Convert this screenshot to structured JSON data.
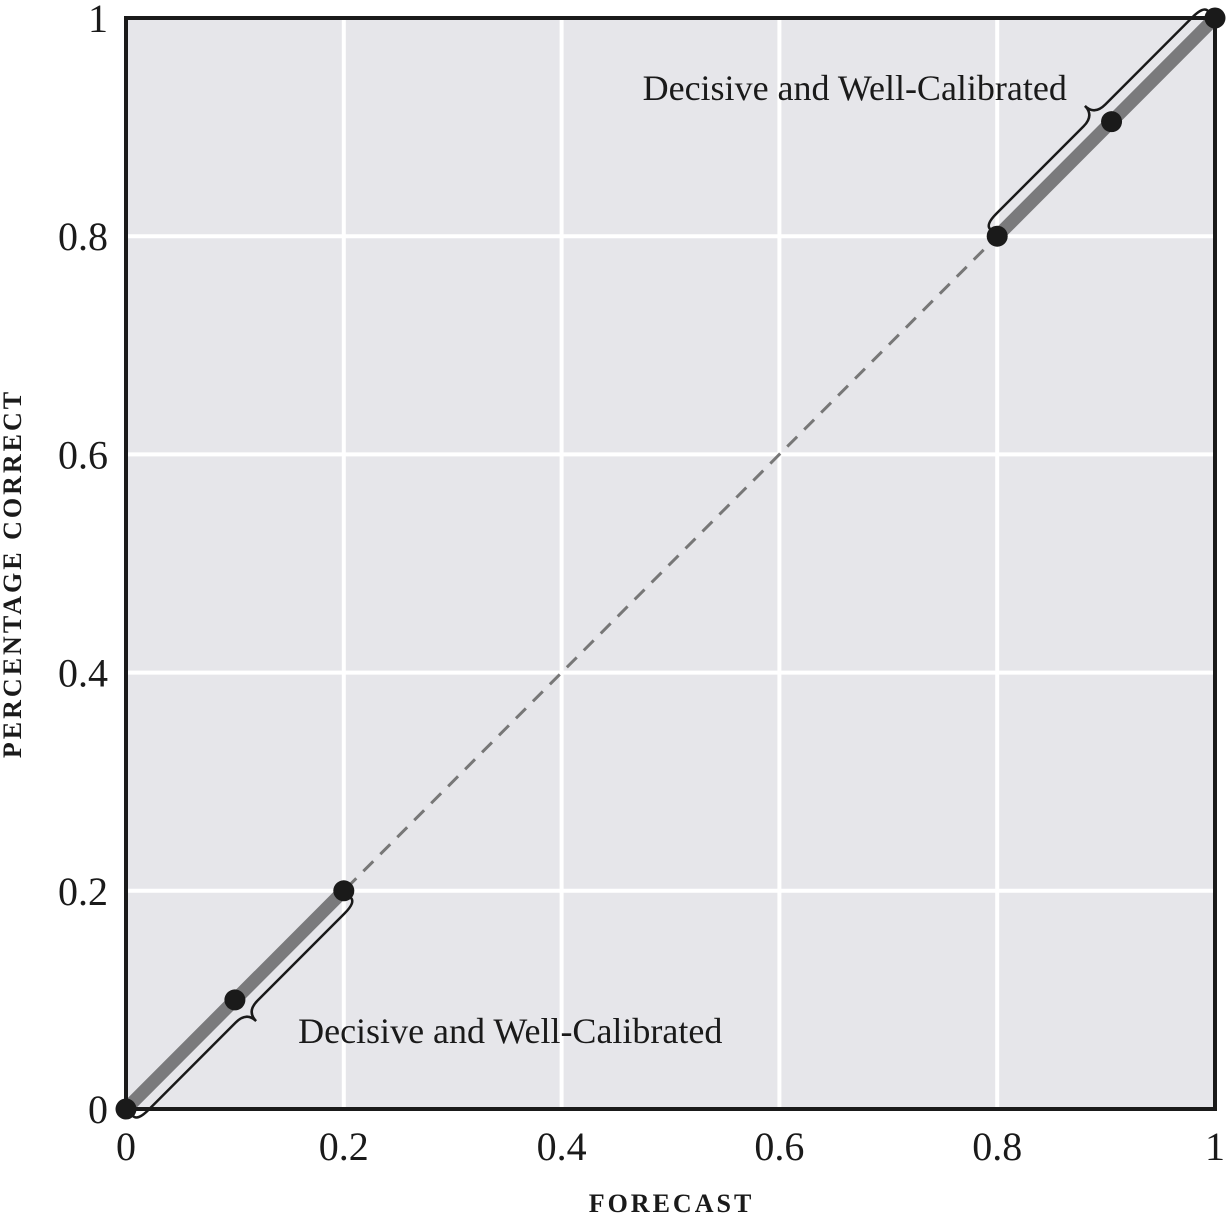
{
  "chart_data": {
    "type": "line",
    "title": "",
    "xlabel": "FORECAST",
    "ylabel": "PERCENTAGE CORRECT",
    "xlim": [
      0,
      1
    ],
    "ylim": [
      0,
      1
    ],
    "grid": true,
    "x_ticks": [
      "0",
      "0.2",
      "0.4",
      "0.6",
      "0.8",
      "1"
    ],
    "y_ticks": [
      "0",
      "0.2",
      "0.4",
      "0.6",
      "0.8",
      "1"
    ],
    "series": [
      {
        "style": "dashed",
        "color": "#777777",
        "points": [
          {
            "x": 0,
            "y": 0
          },
          {
            "x": 1,
            "y": 1
          }
        ]
      },
      {
        "style": "thick",
        "color": "#7a7a7c",
        "points": [
          {
            "x": 0,
            "y": 0
          },
          {
            "x": 0.2,
            "y": 0.2
          }
        ]
      },
      {
        "style": "thick",
        "color": "#7a7a7c",
        "points": [
          {
            "x": 0.8,
            "y": 0.8
          },
          {
            "x": 1,
            "y": 1
          }
        ]
      }
    ],
    "points": [
      {
        "x": 0,
        "y": 0
      },
      {
        "x": 0.1,
        "y": 0.1
      },
      {
        "x": 0.2,
        "y": 0.2
      },
      {
        "x": 0.8,
        "y": 0.8
      },
      {
        "x": 0.905,
        "y": 0.905
      },
      {
        "x": 1,
        "y": 1
      }
    ],
    "annotations": [
      {
        "text": "Decisive and Well-Calibrated",
        "range": [
          0,
          0.2
        ]
      },
      {
        "text": "Decisive and Well-Calibrated",
        "range": [
          0.8,
          1
        ]
      }
    ],
    "colors": {
      "plot_background": "#e6e6ea",
      "grid": "#ffffff",
      "frame": "#1a1a1a",
      "marker": "#1a1a1a"
    }
  }
}
